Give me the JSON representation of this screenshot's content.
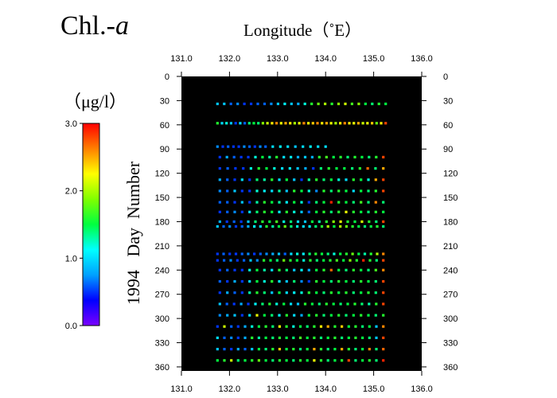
{
  "chart_data": {
    "type": "scatter",
    "title": {
      "prefix": "Chl.-",
      "italic": "a"
    },
    "xlabel": "Longitude（˚E）",
    "ylabel": "1994   Day  Number",
    "colorbar": {
      "label": "（μg/l）",
      "ticks": [
        "3.0",
        "2.0",
        "1.0",
        "0.0"
      ],
      "range": [
        0,
        3
      ],
      "colormap": [
        "#7a00ff",
        "#0000ff",
        "#00a0ff",
        "#00ffff",
        "#00ff40",
        "#80ff00",
        "#ffff00",
        "#ff8000",
        "#ff0000"
      ]
    },
    "xlim": [
      131.0,
      136.0
    ],
    "ylim": [
      0,
      365
    ],
    "x_ticks": [
      "131.0",
      "132.0",
      "133.0",
      "134.0",
      "135.0",
      "136.0"
    ],
    "y_ticks": [
      "0",
      "30",
      "60",
      "90",
      "120",
      "150",
      "180",
      "210",
      "240",
      "270",
      "300",
      "330",
      "360"
    ],
    "background": "#000000",
    "transects": [
      {
        "day": 34,
        "x_start": 131.75,
        "x_end": 135.25,
        "values": [
          0.9,
          0.9,
          0.6,
          0.7,
          0.5,
          0.5,
          0.6,
          0.6,
          0.7,
          0.9,
          1.1,
          0.9,
          0.8,
          1.2,
          1.6,
          1.8,
          2.0,
          1.6,
          1.9,
          2.1,
          1.7,
          1.9,
          1.5,
          1.4,
          1.6,
          1.5
        ]
      },
      {
        "day": 58,
        "x_start": 131.75,
        "x_end": 135.25,
        "values": [
          1.6,
          1.0,
          1.2,
          0.9,
          0.5,
          1.0,
          0.6,
          1.4,
          1.5,
          1.4,
          1.9,
          2.1,
          2.3,
          2.6,
          2.2,
          2.5,
          2.3,
          2.0,
          2.2,
          2.6,
          2.2,
          2.4,
          2.6,
          2.3,
          2.5,
          2.2,
          2.0,
          2.3,
          2.6,
          2.3,
          2.2,
          2.5,
          2.1,
          2.2,
          2.4,
          1.8,
          2.3,
          2.8
        ]
      },
      {
        "day": 87,
        "x_start": 131.75,
        "x_end": 132.75,
        "values": [
          0.7,
          0.5,
          0.6,
          0.5,
          0.5,
          0.7,
          0.6,
          0.5,
          0.7,
          0.6
        ]
      },
      {
        "day": 87,
        "x_start": 132.9,
        "x_end": 134.0,
        "values": [
          1.0,
          1.1,
          1.0,
          0.9,
          1.0,
          1.1,
          1.0,
          1.0
        ]
      },
      {
        "day": 100,
        "x_start": 131.8,
        "x_end": 135.2,
        "values": [
          0.5,
          0.8,
          0.6,
          0.5,
          0.5,
          1.2,
          1.5,
          1.3,
          1.6,
          1.0,
          1.1,
          0.8,
          0.9,
          0.8,
          1.6,
          1.7,
          1.5,
          1.6,
          1.4,
          1.6,
          1.5,
          1.4,
          1.6,
          2.8
        ]
      },
      {
        "day": 114,
        "x_start": 131.8,
        "x_end": 135.2,
        "values": [
          0.5,
          0.6,
          0.5,
          0.5,
          1.2,
          1.6,
          1.5,
          1.2,
          1.0,
          1.1,
          0.9,
          0.8,
          0.5,
          1.4,
          1.6,
          1.5,
          1.5,
          1.4,
          1.6,
          2.7,
          1.4,
          2.5
        ]
      },
      {
        "day": 128,
        "x_start": 131.8,
        "x_end": 135.2,
        "values": [
          0.8,
          0.6,
          0.5,
          1.0,
          0.5,
          1.4,
          1.3,
          1.6,
          1.0,
          1.5,
          0.9,
          0.5,
          1.3,
          1.6,
          1.4,
          1.5,
          1.2,
          1.0,
          1.6,
          1.5,
          1.2,
          2.5,
          2.8
        ]
      },
      {
        "day": 142,
        "x_start": 131.8,
        "x_end": 135.2,
        "values": [
          0.7,
          0.6,
          0.9,
          0.5,
          0.5,
          1.2,
          1.1,
          1.0,
          1.3,
          0.9,
          1.6,
          1.5,
          1.2,
          0.7,
          1.6,
          1.4,
          1.6,
          1.5,
          1.0,
          1.5,
          1.4,
          1.6,
          2.8
        ]
      },
      {
        "day": 156,
        "x_start": 131.8,
        "x_end": 135.2,
        "values": [
          0.6,
          0.6,
          0.5,
          0.9,
          0.5,
          1.3,
          1.6,
          1.5,
          1.3,
          1.1,
          1.5,
          1.2,
          0.5,
          1.4,
          1.5,
          2.9,
          1.6,
          1.5,
          1.4,
          1.7,
          1.4,
          2.6,
          1.4
        ]
      },
      {
        "day": 168,
        "x_start": 131.8,
        "x_end": 135.2,
        "values": [
          0.5,
          0.6,
          0.7,
          0.5,
          1.0,
          1.4,
          1.6,
          1.5,
          1.1,
          1.6,
          1.2,
          0.9,
          0.6,
          1.5,
          1.6,
          1.4,
          1.6,
          2.2,
          1.6,
          1.5,
          1.4,
          1.6,
          1.5
        ]
      },
      {
        "day": 180,
        "x_start": 131.8,
        "x_end": 135.2,
        "values": [
          0.8,
          0.5,
          0.6,
          0.5,
          0.9,
          1.4,
          1.6,
          1.5,
          1.7,
          1.2,
          1.4,
          1.0,
          0.9,
          1.5,
          1.3,
          1.6,
          1.9,
          2.2,
          1.6,
          1.5,
          2.1,
          1.6,
          1.4,
          2.8
        ]
      },
      {
        "day": 186,
        "x_start": 131.75,
        "x_end": 135.2,
        "values": [
          0.9,
          0.6,
          0.7,
          0.5,
          0.6,
          0.8,
          1.1,
          1.0,
          1.6,
          1.3,
          1.5,
          1.8,
          1.4,
          1.2,
          1.0,
          1.1,
          1.4,
          1.6,
          2.0,
          1.5,
          2.0,
          1.8,
          1.6,
          1.5,
          1.4,
          1.5,
          1.6,
          1.4
        ]
      },
      {
        "day": 220,
        "x_start": 131.75,
        "x_end": 135.2,
        "values": [
          0.5,
          0.6,
          0.5,
          0.5,
          0.6,
          0.7,
          0.5,
          0.6,
          0.7,
          0.8,
          0.9,
          0.6,
          1.0,
          1.2,
          1.1,
          1.4,
          1.6,
          1.5,
          1.4,
          1.2,
          1.5,
          1.6,
          1.8,
          1.5,
          1.3,
          1.6,
          2.0,
          2.6
        ]
      },
      {
        "day": 228,
        "x_start": 131.75,
        "x_end": 135.2,
        "values": [
          0.5,
          0.6,
          0.7,
          0.5,
          0.6,
          0.9,
          0.7,
          1.6,
          1.5,
          1.4,
          1.8,
          1.6,
          1.5,
          1.2,
          1.6,
          1.4,
          1.5,
          1.6,
          1.7,
          1.5,
          1.9,
          1.6,
          2.9,
          1.6,
          1.4,
          2.8
        ]
      },
      {
        "day": 240,
        "x_start": 131.8,
        "x_end": 135.2,
        "values": [
          0.5,
          0.6,
          0.5,
          0.5,
          1.2,
          1.5,
          1.3,
          1.0,
          1.6,
          1.4,
          0.9,
          1.1,
          0.8,
          1.5,
          1.6,
          2.7,
          1.5,
          1.4,
          1.6,
          1.5,
          1.4,
          1.7,
          2.6
        ]
      },
      {
        "day": 254,
        "x_start": 131.8,
        "x_end": 135.2,
        "values": [
          0.6,
          0.5,
          0.8,
          0.5,
          1.0,
          1.5,
          1.2,
          1.6,
          1.1,
          0.9,
          1.4,
          0.7,
          0.5,
          1.6,
          1.5,
          1.4,
          1.6,
          1.5,
          1.4,
          1.6,
          1.5,
          1.4,
          2.8
        ]
      },
      {
        "day": 268,
        "x_start": 131.8,
        "x_end": 135.2,
        "values": [
          0.5,
          0.8,
          0.6,
          0.5,
          1.3,
          1.6,
          1.4,
          0.9,
          1.5,
          1.0,
          1.1,
          1.2,
          1.6,
          1.5,
          1.4,
          1.6,
          1.5,
          1.6,
          1.4,
          1.5,
          1.6,
          1.4,
          2.8
        ]
      },
      {
        "day": 282,
        "x_start": 131.8,
        "x_end": 135.2,
        "values": [
          0.9,
          0.6,
          0.5,
          0.8,
          0.5,
          1.1,
          1.4,
          1.6,
          1.2,
          1.5,
          1.0,
          0.9,
          1.6,
          1.5,
          1.4,
          1.6,
          1.5,
          1.4,
          1.5,
          1.6,
          1.4,
          1.3,
          1.6,
          2.8
        ]
      },
      {
        "day": 296,
        "x_start": 131.8,
        "x_end": 135.2,
        "values": [
          0.7,
          0.8,
          0.9,
          0.5,
          1.0,
          2.2,
          1.5,
          1.4,
          1.1,
          1.6,
          1.0,
          0.8,
          1.5,
          1.6,
          1.4,
          1.5,
          1.6,
          1.4,
          1.5,
          1.6,
          1.5,
          1.4,
          1.6
        ]
      },
      {
        "day": 310,
        "x_start": 131.75,
        "x_end": 135.2,
        "values": [
          0.5,
          2.1,
          0.6,
          0.5,
          0.8,
          1.2,
          1.5,
          1.6,
          1.4,
          2.2,
          1.6,
          1.2,
          1.5,
          1.4,
          1.6,
          2.3,
          2.5,
          1.6,
          2.4,
          1.5,
          1.6,
          1.4,
          1.5,
          0.9,
          2.6
        ]
      },
      {
        "day": 324,
        "x_start": 131.75,
        "x_end": 135.2,
        "values": [
          1.0,
          0.6,
          0.7,
          0.5,
          0.8,
          1.6,
          1.3,
          1.5,
          1.4,
          1.6,
          1.5,
          1.4,
          1.7,
          1.5,
          1.6,
          1.4,
          1.5,
          1.6,
          1.4,
          1.5,
          1.6,
          1.5,
          1.4,
          0.9,
          2.8
        ]
      },
      {
        "day": 338,
        "x_start": 131.75,
        "x_end": 135.2,
        "values": [
          0.9,
          0.6,
          0.5,
          0.8,
          0.6,
          0.9,
          1.5,
          1.4,
          1.6,
          2.4,
          1.5,
          1.6,
          1.4,
          1.5,
          2.5,
          1.6,
          1.4,
          1.5,
          2.5,
          1.6,
          1.4,
          1.5,
          2.6,
          1.4,
          2.7
        ]
      },
      {
        "day": 352,
        "x_start": 131.75,
        "x_end": 135.2,
        "values": [
          1.5,
          1.6,
          2.1,
          1.4,
          1.5,
          1.6,
          1.8,
          1.5,
          1.4,
          1.6,
          1.5,
          1.4,
          1.6,
          1.5,
          2.2,
          1.6,
          1.4,
          1.5,
          1.6,
          2.8,
          1.4,
          1.5,
          1.6,
          1.4,
          2.9
        ]
      }
    ]
  }
}
